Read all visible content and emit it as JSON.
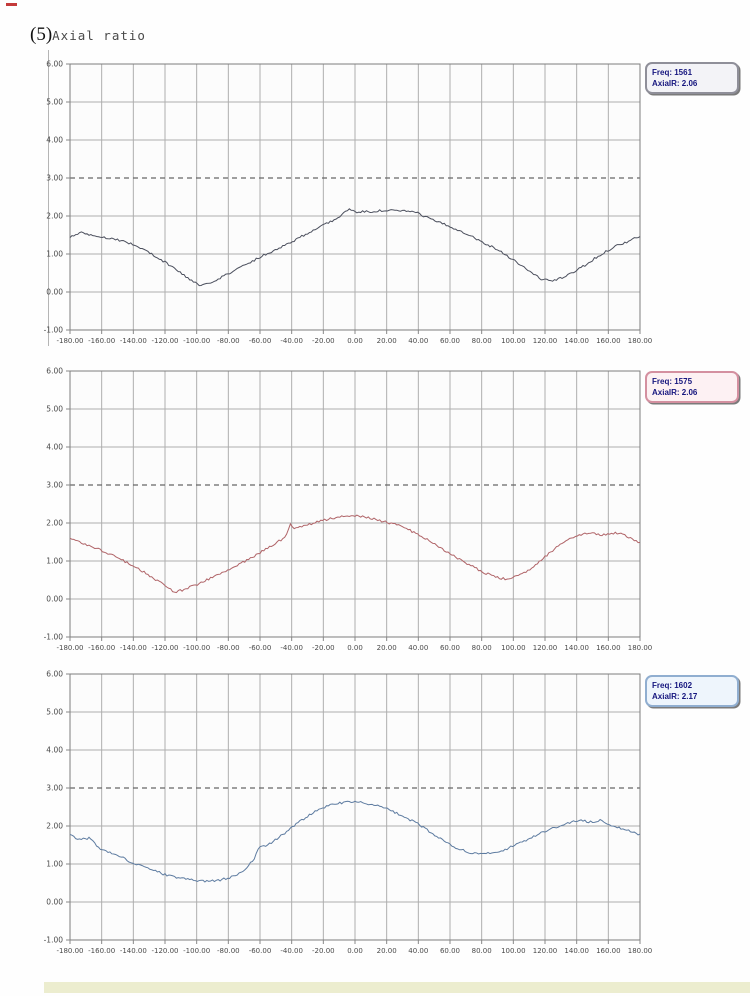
{
  "page": {
    "title_prefix": "(5)",
    "title_text": "Axial ratio"
  },
  "chart_data": [
    {
      "type": "line",
      "series_name": "Axial ratio at Freq 1561",
      "legend": {
        "line1": "Freq: 1561",
        "line2": "AxialR: 2.06"
      },
      "line_color": "#4b4f5d",
      "legend_border": "#8f8f99",
      "legend_bg": "#f3f3f7",
      "legend_text_color": "#15157e",
      "xlabel": "",
      "ylabel": "",
      "xlim": [
        -180,
        180
      ],
      "ylim": [
        -1,
        6
      ],
      "grid": true,
      "legend_position": "top-right-outside",
      "threshold": {
        "value": 3.0,
        "style": "dashed"
      },
      "xtick_labels": [
        "-180.00",
        "-160.00",
        "-140.00",
        "-120.00",
        "-100.00",
        "-80.00",
        "-60.00",
        "-40.00",
        "-20.00",
        "0.00",
        "20.00",
        "40.00",
        "60.00",
        "80.00",
        "100.00",
        "120.00",
        "140.00",
        "160.00",
        "180.00"
      ],
      "ytick_labels": [
        "6.00",
        "5.00",
        "4.00",
        "3.00",
        "2.00",
        "1.00",
        "0.00",
        "-1.00"
      ],
      "x": [
        -180,
        -172,
        -165,
        -155,
        -145,
        -135,
        -125,
        -115,
        -105,
        -97,
        -90,
        -80,
        -70,
        -60,
        -50,
        -40,
        -30,
        -20,
        -10,
        -4,
        0,
        10,
        20,
        30,
        38,
        50,
        60,
        70,
        80,
        90,
        100,
        110,
        118,
        126,
        135,
        145,
        155,
        165,
        172,
        180
      ],
      "y": [
        1.45,
        1.57,
        1.48,
        1.42,
        1.33,
        1.15,
        0.92,
        0.65,
        0.35,
        0.15,
        0.28,
        0.48,
        0.7,
        0.92,
        1.12,
        1.32,
        1.55,
        1.75,
        1.98,
        2.18,
        2.1,
        2.12,
        2.15,
        2.13,
        2.1,
        1.88,
        1.72,
        1.55,
        1.32,
        1.12,
        0.85,
        0.55,
        0.33,
        0.3,
        0.45,
        0.7,
        0.98,
        1.22,
        1.32,
        1.47
      ]
    },
    {
      "type": "line",
      "series_name": "Axial ratio at Freq 1575",
      "legend": {
        "line1": "Freq: 1575",
        "line2": "AxialR: 2.06"
      },
      "line_color": "#b06468",
      "legend_border": "#d490a0",
      "legend_bg": "#fdf1f3",
      "legend_text_color": "#15157e",
      "xlabel": "",
      "ylabel": "",
      "xlim": [
        -180,
        180
      ],
      "ylim": [
        -1,
        6
      ],
      "grid": true,
      "legend_position": "top-right-outside",
      "threshold": {
        "value": 3.0,
        "style": "dashed"
      },
      "xtick_labels": [
        "-180.00",
        "-160.00",
        "-140.00",
        "-120.00",
        "-100.00",
        "-80.00",
        "-60.00",
        "-40.00",
        "-20.00",
        "0.00",
        "20.00",
        "40.00",
        "60.00",
        "80.00",
        "100.00",
        "120.00",
        "140.00",
        "160.00",
        "180.00"
      ],
      "ytick_labels": [
        "6.00",
        "5.00",
        "4.00",
        "3.00",
        "2.00",
        "1.00",
        "0.00",
        "-1.00"
      ],
      "x": [
        -180,
        -170,
        -160,
        -150,
        -140,
        -130,
        -120,
        -114,
        -108,
        -100,
        -90,
        -80,
        -70,
        -60,
        -50,
        -44,
        -41,
        -38,
        -30,
        -20,
        -10,
        0,
        8,
        20,
        30,
        40,
        50,
        60,
        70,
        80,
        90,
        96,
        104,
        112,
        120,
        130,
        140,
        148,
        156,
        164,
        170,
        175,
        180
      ],
      "y": [
        1.6,
        1.44,
        1.28,
        1.08,
        0.88,
        0.62,
        0.35,
        0.18,
        0.25,
        0.38,
        0.57,
        0.77,
        0.98,
        1.22,
        1.48,
        1.62,
        1.98,
        1.85,
        1.95,
        2.07,
        2.16,
        2.2,
        2.15,
        2.02,
        1.9,
        1.7,
        1.45,
        1.2,
        0.95,
        0.72,
        0.56,
        0.52,
        0.62,
        0.83,
        1.12,
        1.45,
        1.67,
        1.74,
        1.68,
        1.74,
        1.7,
        1.58,
        1.46
      ]
    },
    {
      "type": "line",
      "series_name": "Axial ratio at Freq 1602",
      "legend": {
        "line1": "Freq: 1602",
        "line2": "AxialR: 2.17"
      },
      "line_color": "#5d7ba0",
      "legend_border": "#90aed0",
      "legend_bg": "#eef5fc",
      "legend_text_color": "#15157e",
      "xlabel": "",
      "ylabel": "",
      "xlim": [
        -180,
        180
      ],
      "ylim": [
        -1,
        6
      ],
      "grid": true,
      "legend_position": "top-right-outside",
      "threshold": {
        "value": 3.0,
        "style": "dashed"
      },
      "xtick_labels": [
        "-180.00",
        "-160.00",
        "-140.00",
        "-120.00",
        "-100.00",
        "-80.00",
        "-60.00",
        "-40.00",
        "-20.00",
        "0.00",
        "20.00",
        "40.00",
        "60.00",
        "80.00",
        "100.00",
        "120.00",
        "140.00",
        "160.00",
        "180.00"
      ],
      "ytick_labels": [
        "6.00",
        "5.00",
        "4.00",
        "3.00",
        "2.00",
        "1.00",
        "0.00",
        "-1.00"
      ],
      "x": [
        -180,
        -175,
        -168,
        -160,
        -150,
        -140,
        -130,
        -120,
        -110,
        -100,
        -90,
        -80,
        -70,
        -64,
        -61,
        -55,
        -45,
        -35,
        -25,
        -15,
        -5,
        0,
        10,
        20,
        30,
        40,
        50,
        60,
        70,
        78,
        86,
        95,
        105,
        115,
        125,
        135,
        143,
        148,
        155,
        162,
        170,
        176,
        180
      ],
      "y": [
        1.76,
        1.64,
        1.68,
        1.38,
        1.24,
        1.02,
        0.88,
        0.72,
        0.62,
        0.56,
        0.55,
        0.62,
        0.82,
        1.12,
        1.42,
        1.5,
        1.8,
        2.12,
        2.38,
        2.56,
        2.64,
        2.65,
        2.57,
        2.46,
        2.27,
        2.05,
        1.78,
        1.5,
        1.33,
        1.26,
        1.3,
        1.38,
        1.57,
        1.77,
        1.95,
        2.08,
        2.17,
        2.1,
        2.15,
        2.02,
        1.92,
        1.82,
        1.78
      ]
    }
  ]
}
